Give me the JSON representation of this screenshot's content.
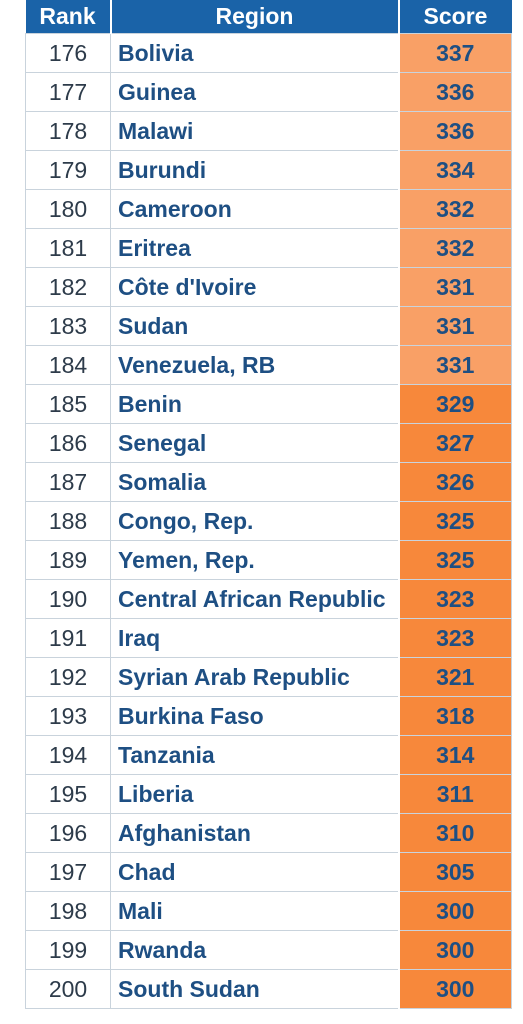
{
  "header": {
    "rank": "Rank",
    "region": "Region",
    "score": "Score"
  },
  "rows": [
    {
      "rank": "176",
      "region": "Bolivia",
      "score": "337",
      "color": "#f9a066"
    },
    {
      "rank": "177",
      "region": "Guinea",
      "score": "336",
      "color": "#f9a066"
    },
    {
      "rank": "178",
      "region": "Malawi",
      "score": "336",
      "color": "#f9a066"
    },
    {
      "rank": "179",
      "region": "Burundi",
      "score": "334",
      "color": "#f9a066"
    },
    {
      "rank": "180",
      "region": "Cameroon",
      "score": "332",
      "color": "#f9a066"
    },
    {
      "rank": "181",
      "region": "Eritrea",
      "score": "332",
      "color": "#f9a066"
    },
    {
      "rank": "182",
      "region": "Côte d'Ivoire",
      "score": "331",
      "color": "#f9a066"
    },
    {
      "rank": "183",
      "region": "Sudan",
      "score": "331",
      "color": "#f9a066"
    },
    {
      "rank": "184",
      "region": "Venezuela, RB",
      "score": "331",
      "color": "#f9a066"
    },
    {
      "rank": "185",
      "region": "Benin",
      "score": "329",
      "color": "#f7883b"
    },
    {
      "rank": "186",
      "region": "Senegal",
      "score": "327",
      "color": "#f7883b"
    },
    {
      "rank": "187",
      "region": "Somalia",
      "score": "326",
      "color": "#f7883b"
    },
    {
      "rank": "188",
      "region": "Congo, Rep.",
      "score": "325",
      "color": "#f7883b"
    },
    {
      "rank": "189",
      "region": "Yemen, Rep.",
      "score": "325",
      "color": "#f7883b"
    },
    {
      "rank": "190",
      "region": "Central African Republic",
      "score": "323",
      "color": "#f7883b"
    },
    {
      "rank": "191",
      "region": "Iraq",
      "score": "323",
      "color": "#f7883b"
    },
    {
      "rank": "192",
      "region": "Syrian Arab Republic",
      "score": "321",
      "color": "#f7883b"
    },
    {
      "rank": "193",
      "region": "Burkina Faso",
      "score": "318",
      "color": "#f7883b"
    },
    {
      "rank": "194",
      "region": "Tanzania",
      "score": "314",
      "color": "#f7883b"
    },
    {
      "rank": "195",
      "region": "Liberia",
      "score": "311",
      "color": "#f7883b"
    },
    {
      "rank": "196",
      "region": "Afghanistan",
      "score": "310",
      "color": "#f7883b"
    },
    {
      "rank": "197",
      "region": "Chad",
      "score": "305",
      "color": "#f7883b"
    },
    {
      "rank": "198",
      "region": "Mali",
      "score": "300",
      "color": "#f7883b"
    },
    {
      "rank": "199",
      "region": "Rwanda",
      "score": "300",
      "color": "#f7883b"
    },
    {
      "rank": "200",
      "region": "South Sudan",
      "score": "300",
      "color": "#f7883b"
    }
  ]
}
